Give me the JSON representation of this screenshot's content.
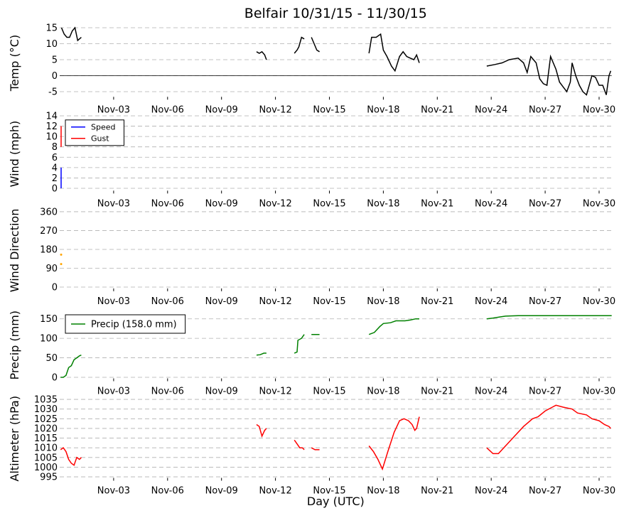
{
  "chart_data": [
    {
      "type": "line",
      "title": "Belfair 10/31/15 - 11/30/15",
      "ylabel": "Temp ($^\\circ$C)",
      "xlim": [
        0,
        30.7
      ],
      "xticks": [
        {
          "value": 3,
          "label": "Nov-03"
        },
        {
          "value": 6,
          "label": "Nov-06"
        },
        {
          "value": 9,
          "label": "Nov-09"
        },
        {
          "value": 12,
          "label": "Nov-12"
        },
        {
          "value": 15,
          "label": "Nov-15"
        },
        {
          "value": 18,
          "label": "Nov-18"
        },
        {
          "value": 21,
          "label": "Nov-21"
        },
        {
          "value": 24,
          "label": "Nov-24"
        },
        {
          "value": 27,
          "label": "Nov-27"
        },
        {
          "value": 30,
          "label": "Nov-30"
        }
      ],
      "ylim": [
        -7.5,
        15.5
      ],
      "yticks": [
        -5,
        0,
        5,
        10,
        15
      ],
      "grid": true,
      "zero_line": true,
      "series": [
        {
          "color": "#000000",
          "x": [
            0.1,
            0.25,
            0.4,
            0.55,
            0.7,
            0.85,
            1.0,
            1.1,
            1.2,
            6,
            10.95,
            11.1,
            11.25,
            11.4,
            11.5,
            12.3,
            13.05,
            13.2,
            13.3,
            13.45,
            13.6,
            13.8,
            14.0,
            14.15,
            14.3,
            14.45,
            15.8,
            17.2,
            17.35,
            17.6,
            17.85,
            18.0,
            18.2,
            18.45,
            18.65,
            18.9,
            19.1,
            19.3,
            19.5,
            19.7,
            19.85,
            20.0,
            22,
            23.75,
            24.2,
            24.6,
            25.0,
            25.5,
            25.8,
            26.0,
            26.2,
            26.5,
            26.7,
            26.9,
            27.1,
            27.3,
            27.6,
            27.8,
            28.0,
            28.2,
            28.4,
            28.5,
            28.7,
            28.9,
            29.1,
            29.3,
            29.6,
            29.8,
            30.0,
            30.2,
            30.4,
            30.55,
            30.65
          ],
          "values": [
            15,
            13,
            12,
            12,
            14,
            15,
            11,
            11.5,
            12,
            null,
            7.5,
            7,
            7.5,
            6.5,
            5,
            null,
            7,
            8,
            9,
            12,
            11.5,
            null,
            12,
            10,
            8,
            7.5,
            null,
            7,
            12,
            12,
            13,
            8,
            6,
            3,
            1.5,
            6,
            7.5,
            6,
            5.5,
            5,
            6.5,
            4,
            null,
            3,
            3.5,
            4,
            5,
            5.5,
            4,
            1,
            6,
            4,
            -1,
            -2.5,
            -3,
            6,
            2,
            -2,
            -3.5,
            -5,
            -2,
            4,
            0,
            -3,
            -5,
            -6,
            0,
            -0.5,
            -3,
            -3,
            -6,
            0,
            1.5
          ]
        }
      ]
    },
    {
      "type": "line",
      "ylabel": "Wind (mph)",
      "xlim": [
        0,
        30.7
      ],
      "xticks": [
        {
          "value": 3,
          "label": "Nov-03"
        },
        {
          "value": 6,
          "label": "Nov-06"
        },
        {
          "value": 9,
          "label": "Nov-09"
        },
        {
          "value": 12,
          "label": "Nov-12"
        },
        {
          "value": 15,
          "label": "Nov-15"
        },
        {
          "value": 18,
          "label": "Nov-18"
        },
        {
          "value": 21,
          "label": "Nov-21"
        },
        {
          "value": 24,
          "label": "Nov-24"
        },
        {
          "value": 27,
          "label": "Nov-27"
        },
        {
          "value": 30,
          "label": "Nov-30"
        }
      ],
      "ylim": [
        -1,
        14.3
      ],
      "yticks": [
        0,
        2,
        4,
        6,
        8,
        10,
        12,
        14
      ],
      "grid": true,
      "legend": "upper left",
      "series": [
        {
          "name": "Speed",
          "color": "#0000ff",
          "x": [
            0.08,
            0.08
          ],
          "values": [
            0,
            4
          ]
        },
        {
          "name": "Gust",
          "color": "#ff0000",
          "x": [
            0.08,
            0.08
          ],
          "values": [
            8,
            12
          ]
        }
      ]
    },
    {
      "type": "scatter",
      "ylabel": "Wind Direction",
      "xlim": [
        0,
        30.7
      ],
      "xticks": [
        {
          "value": 3,
          "label": "Nov-03"
        },
        {
          "value": 6,
          "label": "Nov-06"
        },
        {
          "value": 9,
          "label": "Nov-09"
        },
        {
          "value": 12,
          "label": "Nov-12"
        },
        {
          "value": 15,
          "label": "Nov-15"
        },
        {
          "value": 18,
          "label": "Nov-18"
        },
        {
          "value": 21,
          "label": "Nov-21"
        },
        {
          "value": 24,
          "label": "Nov-24"
        },
        {
          "value": 27,
          "label": "Nov-27"
        },
        {
          "value": 30,
          "label": "Nov-30"
        }
      ],
      "ylim": [
        -20,
        370
      ],
      "yticks": [
        0,
        90,
        180,
        270,
        360
      ],
      "grid": true,
      "series": [
        {
          "color": "#ffa500",
          "x": [
            0.08,
            0.08
          ],
          "values": [
            155,
            110
          ]
        }
      ]
    },
    {
      "type": "line",
      "ylabel": "Precip (mm)",
      "xlim": [
        0,
        30.7
      ],
      "xticks": [
        {
          "value": 3,
          "label": "Nov-03"
        },
        {
          "value": 6,
          "label": "Nov-06"
        },
        {
          "value": 9,
          "label": "Nov-09"
        },
        {
          "value": 12,
          "label": "Nov-12"
        },
        {
          "value": 15,
          "label": "Nov-15"
        },
        {
          "value": 18,
          "label": "Nov-18"
        },
        {
          "value": 21,
          "label": "Nov-21"
        },
        {
          "value": 24,
          "label": "Nov-24"
        },
        {
          "value": 27,
          "label": "Nov-27"
        },
        {
          "value": 30,
          "label": "Nov-30"
        }
      ],
      "ylim": [
        -10,
        175
      ],
      "yticks": [
        0,
        50,
        100,
        150
      ],
      "grid": true,
      "legend": "upper left",
      "series": [
        {
          "name": "Precip (158.0 mm)",
          "color": "#008000",
          "x": [
            0.05,
            0.2,
            0.35,
            0.5,
            0.65,
            0.8,
            0.95,
            1.1,
            1.2,
            6,
            10.95,
            11.15,
            11.35,
            11.5,
            12.3,
            13.05,
            13.2,
            13.25,
            13.45,
            13.6,
            13.8,
            14.0,
            14.45,
            15.8,
            17.2,
            17.5,
            17.8,
            18.0,
            18.4,
            18.7,
            19.2,
            19.5,
            19.8,
            20.0,
            22,
            23.75,
            24.1,
            24.5,
            24.8,
            25.5,
            28.0,
            30.7
          ],
          "values": [
            0,
            0,
            5,
            25,
            30,
            45,
            50,
            55,
            57,
            null,
            57,
            58,
            62,
            62,
            null,
            62,
            65,
            95,
            100,
            110,
            null,
            110,
            110,
            null,
            110,
            115,
            130,
            138,
            140,
            145,
            145,
            147,
            150,
            150,
            null,
            150,
            152,
            155,
            157,
            158,
            158,
            158
          ]
        }
      ]
    },
    {
      "type": "line",
      "ylabel": "Altimeter (hPa)",
      "xlabel": "Day (UTC)",
      "xlim": [
        0,
        30.7
      ],
      "xticks": [
        {
          "value": 3,
          "label": "Nov-03"
        },
        {
          "value": 6,
          "label": "Nov-06"
        },
        {
          "value": 9,
          "label": "Nov-09"
        },
        {
          "value": 12,
          "label": "Nov-12"
        },
        {
          "value": 15,
          "label": "Nov-15"
        },
        {
          "value": 18,
          "label": "Nov-18"
        },
        {
          "value": 21,
          "label": "Nov-21"
        },
        {
          "value": 24,
          "label": "Nov-24"
        },
        {
          "value": 27,
          "label": "Nov-27"
        },
        {
          "value": 30,
          "label": "Nov-30"
        }
      ],
      "ylim": [
        993,
        1036.5
      ],
      "yticks": [
        995,
        1000,
        1005,
        1010,
        1015,
        1020,
        1025,
        1030,
        1035
      ],
      "grid": true,
      "series": [
        {
          "color": "#ff0000",
          "x": [
            0.05,
            0.2,
            0.35,
            0.5,
            0.65,
            0.8,
            0.95,
            1.1,
            1.2,
            6,
            10.95,
            11.1,
            11.25,
            11.4,
            11.5,
            12.3,
            13.05,
            13.2,
            13.35,
            13.5,
            13.6,
            13.8,
            14.0,
            14.2,
            14.45,
            15.8,
            17.2,
            17.45,
            17.7,
            17.95,
            18.25,
            18.6,
            18.9,
            19.15,
            19.4,
            19.6,
            19.75,
            19.85,
            20.0,
            22,
            23.75,
            24.1,
            24.4,
            24.8,
            25.3,
            25.8,
            26.3,
            26.6,
            27.0,
            27.4,
            27.6,
            28.0,
            28.5,
            28.8,
            29.3,
            29.6,
            30.0,
            30.3,
            30.55,
            30.65
          ],
          "values": [
            1009,
            1010,
            1008,
            1004,
            1002,
            1001,
            1005,
            1004,
            1005,
            null,
            1022,
            1021,
            1016,
            1019,
            1020,
            null,
            1014,
            1012,
            1010,
            1010,
            1009,
            null,
            1010,
            1009,
            1009,
            null,
            1011,
            1008,
            1004,
            999,
            1008,
            1018,
            1024,
            1025,
            1024,
            1022,
            1019,
            1020,
            1026,
            null,
            1010,
            1007,
            1007,
            1011,
            1016,
            1021,
            1025,
            1026,
            1029,
            1031,
            1032,
            1031,
            1030,
            1028,
            1027,
            1025,
            1024,
            1022,
            1021,
            1020
          ]
        }
      ]
    }
  ]
}
